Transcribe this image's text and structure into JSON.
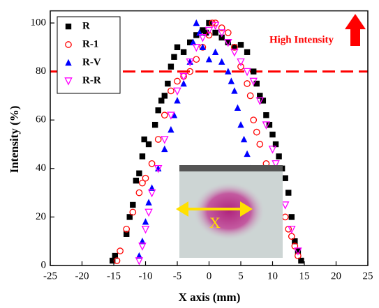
{
  "chart_data": {
    "type": "scatter",
    "x_label": "X axis (mm)",
    "y_label": "Intensity (%)",
    "xlim": [
      -25,
      25
    ],
    "xticks": [
      -25,
      -20,
      -15,
      -10,
      -5,
      0,
      5,
      10,
      15,
      20,
      25
    ],
    "ylim": [
      0,
      105
    ],
    "yticks": [
      0,
      20,
      40,
      60,
      80,
      100
    ],
    "reference_line": {
      "value": 80,
      "color": "#ff0000"
    },
    "annotation": "High Intensity",
    "inset_label": "X",
    "legend": "upper left",
    "series": [
      {
        "name": "R",
        "color": "#000000",
        "marker": "square",
        "x": [
          -15.2,
          -14.8,
          -13,
          -12.5,
          -12,
          -11.5,
          -11,
          -10.5,
          -10.2,
          -9.5,
          -8.5,
          -8,
          -7.5,
          -7,
          -6.5,
          -6,
          -5.5,
          -5,
          -4,
          -3,
          -2,
          -1,
          -0.5,
          0,
          1,
          2,
          3,
          4,
          5,
          6,
          7,
          7.5,
          8,
          8.5,
          9,
          9.5,
          10,
          10.5,
          11,
          11.5,
          12,
          12.5,
          13,
          13.5,
          14,
          14.5
        ],
        "values": [
          2,
          4,
          13,
          20,
          25,
          35,
          38,
          45,
          52,
          50,
          58,
          64,
          68,
          70,
          75,
          82,
          86,
          90,
          88,
          92,
          95,
          97,
          96,
          100,
          96,
          94,
          92,
          90,
          91,
          88,
          80,
          75,
          70,
          68,
          62,
          58,
          54,
          50,
          45,
          40,
          36,
          30,
          20,
          10,
          6,
          2
        ]
      },
      {
        "name": "R-1",
        "color": "#ff0000",
        "marker": "circle",
        "x": [
          -14.5,
          -14,
          -13,
          -12,
          -11,
          -10.5,
          -10,
          -9,
          -8,
          -7,
          -6,
          -5,
          -4,
          -3,
          -2,
          -1,
          0,
          0.5,
          1,
          2,
          3,
          4,
          5,
          6,
          6.5,
          7,
          7.5,
          8,
          9,
          10,
          11,
          12,
          12.5,
          13,
          13.5,
          14
        ],
        "values": [
          2,
          6,
          15,
          22,
          30,
          34,
          36,
          42,
          52,
          62,
          72,
          76,
          78,
          80,
          85,
          90,
          95,
          100,
          100,
          98,
          96,
          90,
          82,
          75,
          70,
          60,
          55,
          50,
          42,
          40,
          35,
          20,
          15,
          12,
          8,
          4
        ]
      },
      {
        "name": "R-V",
        "color": "#0000ff",
        "marker": "triangle",
        "x": [
          -11,
          -10.5,
          -10,
          -9.5,
          -9,
          -8,
          -7,
          -6,
          -5.5,
          -5,
          -4,
          -3,
          -2.5,
          -2,
          -1.5,
          -1,
          0,
          1,
          2,
          3,
          3.5,
          4,
          4.5,
          5,
          5.5,
          6,
          6.5,
          7,
          7.5,
          8,
          8.5,
          9,
          9.5
        ],
        "values": [
          4,
          10,
          18,
          26,
          32,
          40,
          48,
          56,
          62,
          68,
          75,
          84,
          92,
          100,
          96,
          90,
          85,
          88,
          84,
          80,
          76,
          72,
          65,
          58,
          52,
          46,
          40,
          34,
          28,
          22,
          15,
          10,
          6
        ]
      },
      {
        "name": "R-R",
        "color": "#ff00ff",
        "marker": "down-triangle",
        "x": [
          -11,
          -10.5,
          -10,
          -9.5,
          -9,
          -8,
          -7,
          -6,
          -5,
          -4,
          -3,
          -2,
          -1,
          0,
          1,
          2,
          3,
          4,
          5,
          6,
          7,
          8,
          9,
          10,
          10.5,
          11,
          12,
          13,
          14
        ],
        "values": [
          2,
          8,
          15,
          22,
          30,
          40,
          52,
          62,
          72,
          78,
          84,
          90,
          94,
          97,
          99,
          96,
          92,
          88,
          84,
          80,
          76,
          68,
          58,
          48,
          42,
          36,
          25,
          15,
          6
        ]
      }
    ]
  }
}
